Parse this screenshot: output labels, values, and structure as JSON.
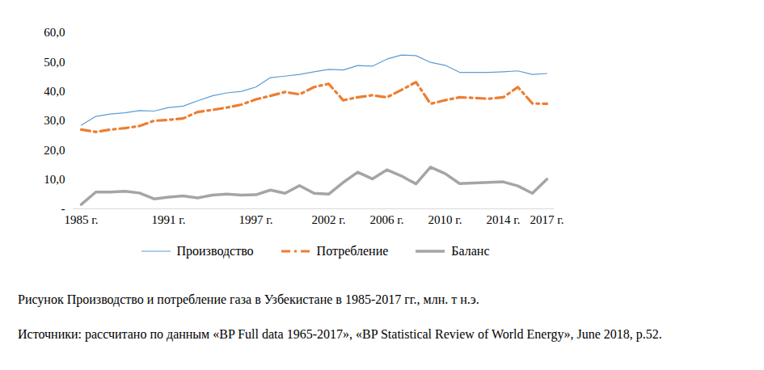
{
  "chart_data": {
    "type": "line",
    "title": "Рисунок Производство и потребление газа в Узбекистане в 1985-2017 гг., млн. т н.э.",
    "source": "Источники: рассчитано по данным «BP Full data 1965-2017», «BP Statistical Review of World Energy», June 2018, p.52.",
    "categories": [
      "1985 г.",
      null,
      null,
      null,
      null,
      null,
      "1991 г.",
      null,
      null,
      null,
      null,
      null,
      "1997 г.",
      null,
      null,
      null,
      null,
      "2002 г.",
      null,
      null,
      null,
      "2006 г.",
      null,
      null,
      null,
      "2010 г.",
      null,
      null,
      null,
      "2014 г.",
      null,
      null,
      "2017 г."
    ],
    "series": [
      {
        "name": "Производство",
        "color": "#5b9bd5",
        "line_style": "solid",
        "values": [
          28.5,
          31.5,
          32.3,
          32.7,
          33.5,
          33.3,
          34.5,
          35.0,
          36.8,
          38.5,
          39.5,
          40.0,
          41.5,
          44.7,
          45.2,
          45.8,
          46.7,
          47.5,
          47.3,
          48.8,
          48.6,
          51.0,
          52.4,
          52.2,
          49.9,
          48.9,
          46.5,
          46.5,
          46.5,
          46.7,
          47.0,
          45.8,
          46.1
        ]
      },
      {
        "name": "Потребление",
        "color": "#ed7d31",
        "line_style": "dashdot",
        "values": [
          27.0,
          26.2,
          27.0,
          27.5,
          28.2,
          30.0,
          30.3,
          30.8,
          33.0,
          33.7,
          34.5,
          35.5,
          37.3,
          38.5,
          39.8,
          39.0,
          41.5,
          42.6,
          37.0,
          38.0,
          38.7,
          38.0,
          40.5,
          43.2,
          35.8,
          37.0,
          38.0,
          37.8,
          37.5,
          38.0,
          41.5,
          35.9,
          35.8
        ]
      },
      {
        "name": "Баланс",
        "color": "#a5a5a5",
        "line_style": "solid",
        "values": [
          1.5,
          5.7,
          5.7,
          6.0,
          5.4,
          3.4,
          4.0,
          4.4,
          3.7,
          4.7,
          5.0,
          4.7,
          4.8,
          6.4,
          5.3,
          7.9,
          5.3,
          5.0,
          9.0,
          12.5,
          10.2,
          13.3,
          11.2,
          8.5,
          14.2,
          12.0,
          8.6,
          8.8,
          9.0,
          9.2,
          7.8,
          5.3,
          10.1
        ]
      }
    ],
    "ylim": [
      0,
      60
    ],
    "yticks": [
      {
        "value": 0,
        "label": "-"
      },
      {
        "value": 10,
        "label": "10,0"
      },
      {
        "value": 20,
        "label": "20,0"
      },
      {
        "value": 30,
        "label": "30,0"
      },
      {
        "value": 40,
        "label": "40,0"
      },
      {
        "value": 50,
        "label": "50,0"
      },
      {
        "value": 60,
        "label": "60,0"
      }
    ],
    "grid": false,
    "legend": "bottom"
  }
}
